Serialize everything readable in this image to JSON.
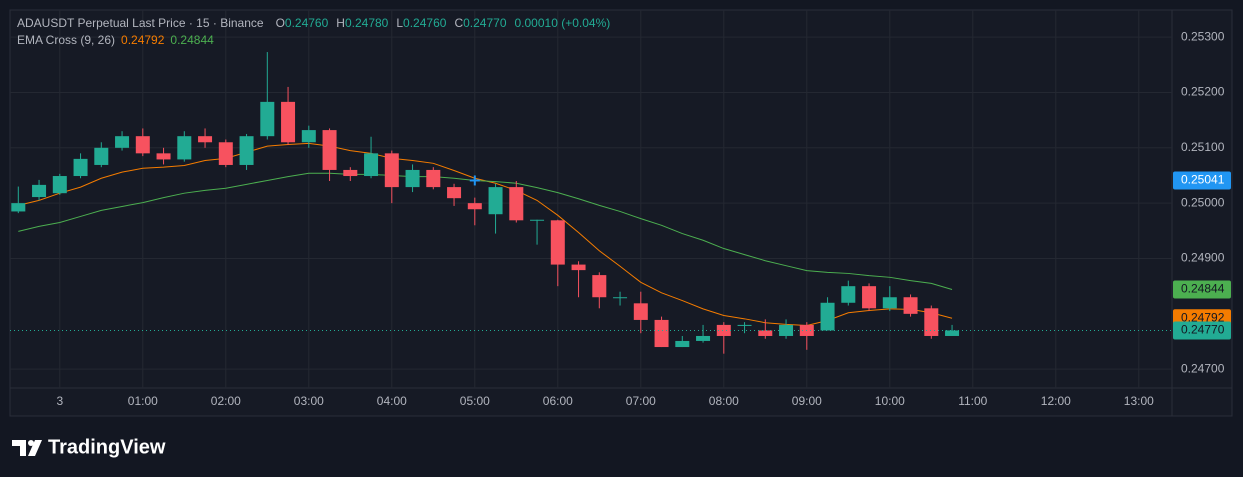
{
  "chart_data": {
    "type": "candlestick",
    "header": {
      "title": "ADAUSDT Perpetual Last Price · 15 · Binance",
      "ohlc": [
        {
          "label": "O",
          "value": "0.24760"
        },
        {
          "label": "H",
          "value": "0.24780"
        },
        {
          "label": "L",
          "value": "0.24760"
        },
        {
          "label": "C",
          "value": "0.24770"
        }
      ],
      "change": "0.00010 (+0.04%)"
    },
    "up_color": "#22ab94",
    "down_color": "#f7525f",
    "x": [
      -0.5,
      -0.25,
      0,
      0.25,
      0.5,
      0.75,
      1,
      1.25,
      1.5,
      1.75,
      2,
      2.25,
      2.5,
      2.75,
      3,
      3.25,
      3.5,
      3.75,
      4,
      4.25,
      4.5,
      4.75,
      5,
      5.25,
      5.5,
      5.75,
      6,
      6.25,
      6.5,
      6.75,
      7,
      7.25,
      7.5,
      7.75,
      8,
      8.25,
      8.5,
      8.75,
      9,
      9.25,
      9.5,
      9.75,
      10,
      10.25,
      10.5,
      10.75
    ],
    "open": [
      0.24985,
      0.25011,
      0.25018,
      0.25049,
      0.25069,
      0.251,
      0.25121,
      0.2509,
      0.25079,
      0.25121,
      0.2511,
      0.25069,
      0.25121,
      0.25183,
      0.2511,
      0.25132,
      0.2506,
      0.25049,
      0.2509,
      0.25029,
      0.2506,
      0.25029,
      0.25,
      0.2498,
      0.25029,
      0.24969,
      0.24969,
      0.24889,
      0.2487,
      0.24829,
      0.24819,
      0.24789,
      0.2474,
      0.24751,
      0.2478,
      0.24779,
      0.2477,
      0.2476,
      0.2478,
      0.2477,
      0.2482,
      0.2485,
      0.2481,
      0.2483,
      0.2481,
      0.2476
    ],
    "high": [
      0.2503,
      0.25042,
      0.25053,
      0.2509,
      0.2511,
      0.2513,
      0.25135,
      0.251,
      0.2513,
      0.25135,
      0.25115,
      0.25125,
      0.25273,
      0.2521,
      0.2514,
      0.25135,
      0.25065,
      0.2512,
      0.25095,
      0.2507,
      0.25065,
      0.25035,
      0.2501,
      0.25035,
      0.2504,
      0.2497,
      0.2497,
      0.24895,
      0.24875,
      0.2484,
      0.2484,
      0.24795,
      0.2476,
      0.2478,
      0.24785,
      0.24785,
      0.2479,
      0.2479,
      0.24785,
      0.2483,
      0.2486,
      0.24855,
      0.2485,
      0.24835,
      0.24815,
      0.2478
    ],
    "low": [
      0.24982,
      0.25005,
      0.25015,
      0.25045,
      0.25065,
      0.25095,
      0.25085,
      0.2507,
      0.25075,
      0.251,
      0.25065,
      0.2506,
      0.25115,
      0.25105,
      0.251,
      0.2504,
      0.2504,
      0.25045,
      0.25,
      0.2502,
      0.25025,
      0.24995,
      0.2496,
      0.24945,
      0.24965,
      0.24925,
      0.2485,
      0.2483,
      0.2481,
      0.24815,
      0.24765,
      0.2474,
      0.2474,
      0.24748,
      0.24728,
      0.24765,
      0.24755,
      0.24755,
      0.24735,
      0.2477,
      0.24815,
      0.24805,
      0.24805,
      0.24795,
      0.24755,
      0.2476
    ],
    "close": [
      0.25,
      0.25033,
      0.25049,
      0.2508,
      0.251,
      0.25121,
      0.2509,
      0.25079,
      0.25121,
      0.2511,
      0.25069,
      0.25121,
      0.25183,
      0.2511,
      0.25132,
      0.2506,
      0.25049,
      0.2509,
      0.25029,
      0.2506,
      0.25029,
      0.25009,
      0.24989,
      0.25029,
      0.24969,
      0.2497,
      0.24889,
      0.24879,
      0.2483,
      0.2483,
      0.24789,
      0.2474,
      0.24751,
      0.2476,
      0.2476,
      0.2478,
      0.2476,
      0.2478,
      0.2476,
      0.2482,
      0.2485,
      0.2481,
      0.2483,
      0.248,
      0.2476,
      0.2477
    ],
    "indicator": {
      "name": "EMA Cross (9, 26)",
      "series": [
        {
          "color": "#f57c00",
          "legend_value": "0.24792",
          "values": [
            0.24996,
            0.25005,
            0.25018,
            0.25029,
            0.25045,
            0.25056,
            0.25063,
            0.25065,
            0.25068,
            0.25077,
            0.25081,
            0.25092,
            0.25103,
            0.25106,
            0.25108,
            0.25103,
            0.25095,
            0.2509,
            0.25081,
            0.25077,
            0.25072,
            0.25059,
            0.25045,
            0.25036,
            0.25023,
            0.25005,
            0.24978,
            0.24947,
            0.24914,
            0.24886,
            0.24857,
            0.24838,
            0.24824,
            0.24809,
            0.24797,
            0.24791,
            0.24784,
            0.24781,
            0.24779,
            0.24788,
            0.24802,
            0.24806,
            0.24809,
            0.24808,
            0.24802,
            0.24792
          ]
        },
        {
          "color": "#4caf50",
          "legend_value": "0.24844",
          "values": [
            0.24949,
            0.24958,
            0.24965,
            0.24976,
            0.24987,
            0.24994,
            0.25001,
            0.2501,
            0.25018,
            0.25023,
            0.25027,
            0.25034,
            0.25041,
            0.25048,
            0.25054,
            0.25054,
            0.25052,
            0.25052,
            0.2505,
            0.25048,
            0.25048,
            0.25045,
            0.25041,
            0.25039,
            0.25036,
            0.25028,
            0.25019,
            0.25008,
            0.24996,
            0.24985,
            0.24972,
            0.2496,
            0.24945,
            0.24933,
            0.24918,
            0.24907,
            0.24896,
            0.24887,
            0.24878,
            0.24875,
            0.24873,
            0.24869,
            0.24866,
            0.2486,
            0.24855,
            0.24844
          ]
        }
      ]
    },
    "xlim": [
      -0.6,
      13.4
    ],
    "xticks": [
      {
        "value": 0,
        "label": "3"
      },
      {
        "value": 1,
        "label": "01:00"
      },
      {
        "value": 2,
        "label": "02:00"
      },
      {
        "value": 3,
        "label": "03:00"
      },
      {
        "value": 4,
        "label": "04:00"
      },
      {
        "value": 5,
        "label": "05:00"
      },
      {
        "value": 6,
        "label": "06:00"
      },
      {
        "value": 7,
        "label": "07:00"
      },
      {
        "value": 8,
        "label": "08:00"
      },
      {
        "value": 9,
        "label": "09:00"
      },
      {
        "value": 10,
        "label": "10:00"
      },
      {
        "value": 11,
        "label": "11:00"
      },
      {
        "value": 12,
        "label": "12:00"
      },
      {
        "value": 13,
        "label": "13:00"
      }
    ],
    "ylim": [
      0.24666,
      0.25349
    ],
    "yticks": [
      {
        "value": 0.253,
        "label": "0.25300"
      },
      {
        "value": 0.252,
        "label": "0.25200"
      },
      {
        "value": 0.251,
        "label": "0.25100"
      },
      {
        "value": 0.25,
        "label": "0.25000"
      },
      {
        "value": 0.249,
        "label": "0.24900"
      },
      {
        "value": 0.247,
        "label": "0.24700"
      }
    ],
    "grid": true,
    "crosshair": {
      "x": 5,
      "value": 0.25041,
      "label": "0.25041",
      "color": "#2196f3",
      "text_color": "#ffffff"
    },
    "price_labels": [
      {
        "value": 0.24844,
        "label": "0.24844",
        "color": "#4caf50",
        "text_color": "#131722"
      },
      {
        "value": 0.24792,
        "label": "0.24792",
        "color": "#f57c00",
        "text_color": "#131722"
      },
      {
        "value": 0.2477,
        "label": "0.24770",
        "color": "#22ab94",
        "text_color": "#131722",
        "dotted": true
      }
    ]
  },
  "branding": "TradingView"
}
